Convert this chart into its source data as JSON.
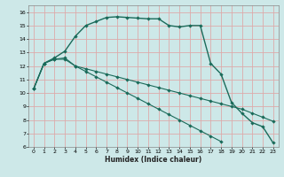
{
  "xlabel": "Humidex (Indice chaleur)",
  "bg_color": "#cde8e8",
  "grid_color": "#ddaaaa",
  "line_color": "#1a6b5a",
  "xlim": [
    -0.5,
    23.5
  ],
  "ylim": [
    6,
    16.5
  ],
  "xticks": [
    0,
    1,
    2,
    3,
    4,
    5,
    6,
    7,
    8,
    9,
    10,
    11,
    12,
    13,
    14,
    15,
    16,
    17,
    18,
    19,
    20,
    21,
    22,
    23
  ],
  "yticks": [
    6,
    7,
    8,
    9,
    10,
    11,
    12,
    13,
    14,
    15,
    16
  ],
  "line1_y": [
    10.3,
    12.2,
    12.6,
    13.1,
    14.2,
    15.0,
    15.3,
    15.6,
    15.65,
    15.6,
    15.55,
    15.5,
    15.5,
    15.0,
    14.9,
    15.0,
    15.0,
    12.2,
    11.4,
    9.3,
    8.5,
    7.8,
    7.5,
    6.3
  ],
  "line2_y": [
    10.3,
    12.2,
    12.5,
    12.6,
    12.0,
    11.8,
    11.6,
    11.4,
    11.2,
    11.0,
    10.8,
    10.6,
    10.4,
    10.2,
    10.0,
    9.8,
    9.6,
    9.4,
    9.2,
    9.0,
    8.8,
    8.5,
    8.2,
    7.9
  ],
  "line3_y": [
    10.3,
    12.2,
    12.5,
    12.5,
    12.0,
    11.6,
    11.2,
    10.8,
    10.4,
    10.0,
    9.6,
    9.2,
    8.8,
    8.4,
    8.0,
    7.6,
    7.2,
    6.8,
    6.4,
    null,
    null,
    null,
    null,
    null
  ]
}
